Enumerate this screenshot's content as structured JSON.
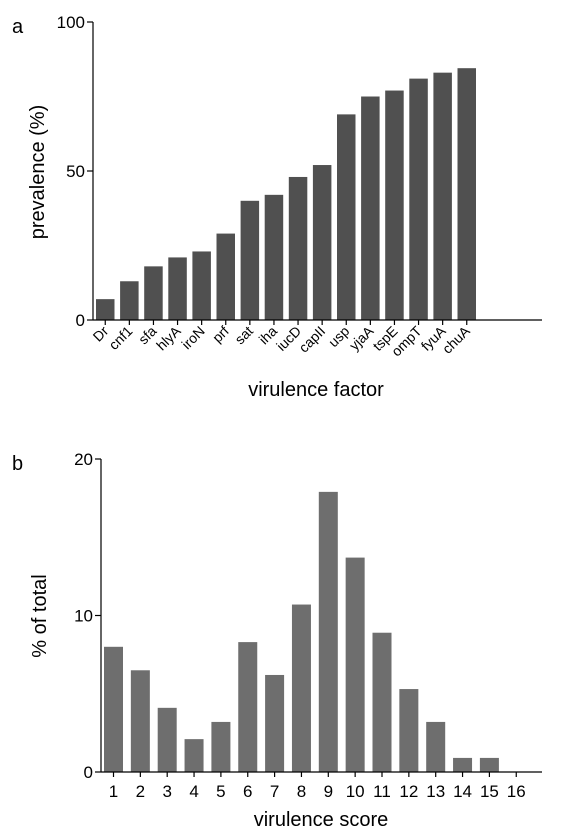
{
  "chart_data": [
    {
      "panel": "a",
      "type": "bar",
      "xlabel": "virulence factor",
      "ylabel": "prevalence (%)",
      "ylim": [
        0,
        100
      ],
      "yticks": [
        "0",
        "50",
        "100"
      ],
      "categories": [
        "Dr",
        "cnf1",
        "sfa",
        "hlyA",
        "iroN",
        "prf",
        "sat",
        "iha",
        "iucD",
        "capII",
        "usp",
        "yjaA",
        "tspE",
        "ompT",
        "fyuA",
        "chuA"
      ],
      "values": [
        7,
        13,
        18,
        21,
        23,
        29,
        40,
        42,
        48,
        52,
        69,
        75,
        77,
        81,
        83,
        84.5
      ],
      "bar_color": "#505050",
      "grid": false
    },
    {
      "panel": "b",
      "type": "bar",
      "xlabel": "virulence score",
      "ylabel": "% of total",
      "ylim": [
        0,
        20
      ],
      "yticks": [
        "0",
        "10",
        "20"
      ],
      "categories": [
        "1",
        "2",
        "3",
        "4",
        "5",
        "6",
        "7",
        "8",
        "9",
        "10",
        "11",
        "12",
        "13",
        "14",
        "15",
        "16"
      ],
      "values": [
        8.0,
        6.5,
        4.1,
        2.1,
        3.2,
        8.3,
        6.2,
        10.7,
        17.9,
        13.7,
        8.9,
        5.3,
        3.2,
        0.9,
        0.9,
        0
      ],
      "bar_color": "#6e6e6e",
      "grid": false
    }
  ]
}
